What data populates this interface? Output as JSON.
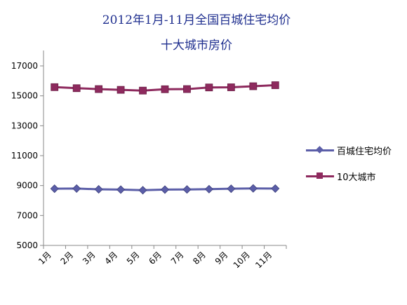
{
  "chart_data": {
    "type": "line",
    "title": "2012年1月-11月全国百城住宅均价",
    "subtitle": "十大城市房价",
    "categories": [
      "1月",
      "2月",
      "3月",
      "4月",
      "5月",
      "6月",
      "7月",
      "8月",
      "9月",
      "10月",
      "11月"
    ],
    "series": [
      {
        "name": "百城住宅均价",
        "color": "#5b5ea8",
        "marker": "diamond",
        "values": [
          8791,
          8800,
          8750,
          8730,
          8690,
          8730,
          8740,
          8760,
          8790,
          8810,
          8800
        ]
      },
      {
        "name": "10大城市",
        "color": "#8e2a5e",
        "marker": "square",
        "values": [
          15580,
          15510,
          15450,
          15400,
          15350,
          15440,
          15450,
          15560,
          15570,
          15640,
          15710
        ]
      }
    ],
    "yticks": [
      "17000",
      "15000",
      "13000",
      "11000",
      "9000",
      "7000",
      "5000"
    ],
    "ylim": [
      5000,
      17000
    ],
    "grid": false,
    "legend_position": "right"
  }
}
